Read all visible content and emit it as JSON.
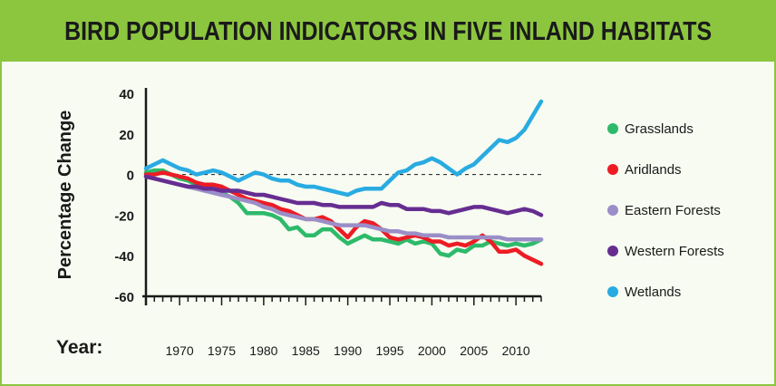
{
  "title": "BIRD POPULATION INDICATORS IN FIVE INLAND HABITATS",
  "colors": {
    "background_band": "#8cc63f",
    "Grasslands": "#2dba6a",
    "Aridlands": "#ed1c24",
    "Eastern Forests": "#9b8ec8",
    "Western Forests": "#662d91",
    "Wetlands": "#29abe2"
  },
  "chart_data": {
    "type": "line",
    "title": "BIRD POPULATION INDICATORS IN FIVE INLAND HABITATS",
    "xlabel": "Year:",
    "ylabel": "Percentage Change",
    "xlim": [
      1966,
      2013
    ],
    "ylim": [
      -60,
      40
    ],
    "x_ticks": [
      1970,
      1975,
      1980,
      1985,
      1990,
      1995,
      2000,
      2005,
      2010
    ],
    "y_ticks": [
      40,
      20,
      0,
      -20,
      -40,
      -60
    ],
    "baseline": 0,
    "grid": false,
    "legend_position": "right",
    "x": [
      1966,
      1967,
      1968,
      1969,
      1970,
      1971,
      1972,
      1973,
      1974,
      1975,
      1976,
      1977,
      1978,
      1979,
      1980,
      1981,
      1982,
      1983,
      1984,
      1985,
      1986,
      1987,
      1988,
      1989,
      1990,
      1991,
      1992,
      1993,
      1994,
      1995,
      1996,
      1997,
      1998,
      1999,
      2000,
      2001,
      2002,
      2003,
      2004,
      2005,
      2006,
      2007,
      2008,
      2009,
      2010,
      2011,
      2012,
      2013
    ],
    "series": [
      {
        "name": "Grasslands",
        "values": [
          1,
          2,
          2,
          0,
          -2,
          -3,
          -5,
          -6,
          -8,
          -9,
          -11,
          -14,
          -19,
          -19,
          -19,
          -20,
          -22,
          -27,
          -26,
          -30,
          -30,
          -27,
          -27,
          -31,
          -34,
          -32,
          -30,
          -32,
          -32,
          -33,
          -34,
          -32,
          -34,
          -33,
          -34,
          -39,
          -40,
          -37,
          -38,
          -35,
          -35,
          -33,
          -34,
          -35,
          -34,
          -35,
          -34,
          -32
        ]
      },
      {
        "name": "Aridlands",
        "values": [
          0,
          0,
          1,
          0,
          -1,
          -2,
          -4,
          -5,
          -5,
          -6,
          -8,
          -10,
          -12,
          -13,
          -14,
          -15,
          -17,
          -18,
          -20,
          -22,
          -22,
          -21,
          -23,
          -27,
          -31,
          -26,
          -23,
          -24,
          -27,
          -31,
          -32,
          -31,
          -30,
          -31,
          -33,
          -33,
          -35,
          -34,
          -35,
          -33,
          -30,
          -33,
          -38,
          -38,
          -37,
          -40,
          -42,
          -44
        ]
      },
      {
        "name": "Eastern Forests",
        "values": [
          -1,
          -2,
          -3,
          -4,
          -5,
          -6,
          -7,
          -8,
          -9,
          -10,
          -11,
          -12,
          -13,
          -14,
          -16,
          -17,
          -19,
          -20,
          -21,
          -22,
          -22,
          -23,
          -24,
          -25,
          -25,
          -25,
          -25,
          -26,
          -27,
          -28,
          -28,
          -29,
          -29,
          -30,
          -30,
          -30,
          -31,
          -31,
          -31,
          -31,
          -31,
          -31,
          -31,
          -32,
          -32,
          -32,
          -32,
          -32
        ]
      },
      {
        "name": "Western Forests",
        "values": [
          -1,
          -2,
          -3,
          -4,
          -5,
          -6,
          -6,
          -7,
          -7,
          -8,
          -8,
          -8,
          -9,
          -10,
          -10,
          -11,
          -12,
          -13,
          -14,
          -14,
          -14,
          -15,
          -15,
          -16,
          -16,
          -16,
          -16,
          -16,
          -14,
          -15,
          -15,
          -17,
          -17,
          -17,
          -18,
          -18,
          -19,
          -18,
          -17,
          -16,
          -16,
          -17,
          -18,
          -19,
          -18,
          -17,
          -18,
          -20
        ]
      },
      {
        "name": "Wetlands",
        "values": [
          3,
          5,
          7,
          5,
          3,
          2,
          0,
          1,
          2,
          1,
          -1,
          -3,
          -1,
          1,
          0,
          -2,
          -3,
          -3,
          -5,
          -6,
          -6,
          -7,
          -8,
          -9,
          -10,
          -8,
          -7,
          -7,
          -7,
          -3,
          1,
          2,
          5,
          6,
          8,
          6,
          3,
          0,
          3,
          5,
          9,
          13,
          17,
          16,
          18,
          22,
          29,
          36
        ]
      }
    ]
  }
}
